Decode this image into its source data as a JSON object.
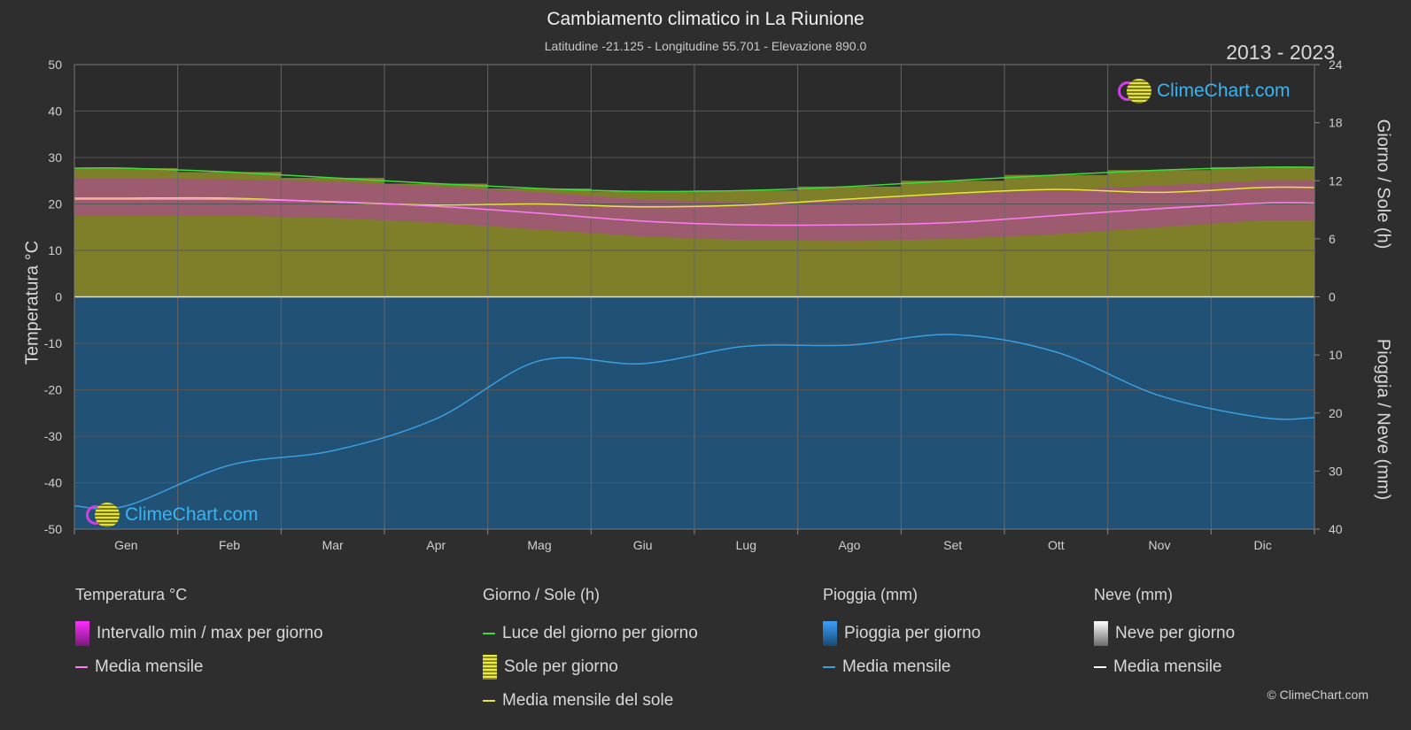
{
  "header": {
    "title": "Cambiamento climatico in La Riunione",
    "subtitle": "Latitudine -21.125 - Longitudine 55.701 - Elevazione 890.0",
    "years": "2013 - 2023"
  },
  "axes": {
    "left_title": "Temperatura °C",
    "right_top_title": "Giorno / Sole (h)",
    "right_bottom_title": "Pioggia / Neve (mm)"
  },
  "logo": {
    "brand": "ClimeChart.com"
  },
  "copyright": "© ClimeChart.com",
  "legend": {
    "temperature": {
      "heading": "Temperatura °C",
      "range_label": "Intervallo min / max per giorno",
      "mean_label": "Media mensile"
    },
    "sun": {
      "heading": "Giorno / Sole (h)",
      "daylight_label": "Luce del giorno per giorno",
      "sun_label": "Sole per giorno",
      "sun_mean_label": "Media mensile del sole"
    },
    "rain": {
      "heading": "Pioggia (mm)",
      "rain_label": "Pioggia per giorno",
      "mean_label": "Media mensile"
    },
    "snow": {
      "heading": "Neve (mm)",
      "snow_label": "Neve per giorno",
      "mean_label": "Media mensile"
    }
  },
  "colors": {
    "daylight": "#3ddc3d",
    "sun_band": "#8e8e2a",
    "sun_mean": "#e6e63a",
    "temp_band": "#c030c0",
    "temp_mean": "#ff7cf5",
    "rain_band": "#1f5f8f",
    "rain_mean": "#3a9ee0",
    "snow_mean": "#ffffff"
  },
  "chart_data": {
    "type": "line",
    "categories": [
      "Gen",
      "Feb",
      "Mar",
      "Apr",
      "Mag",
      "Giu",
      "Lug",
      "Ago",
      "Set",
      "Ott",
      "Nov",
      "Dic"
    ],
    "y_left": {
      "min": -50,
      "max": 50,
      "ticks": [
        50,
        40,
        30,
        20,
        10,
        0,
        -10,
        -20,
        -30,
        -40,
        -50
      ]
    },
    "y_right_top": {
      "min": 0,
      "max": 24,
      "ticks": [
        24,
        18,
        12,
        6,
        0
      ]
    },
    "y_right_bottom": {
      "min": 0,
      "max": 40,
      "ticks": [
        0,
        10,
        20,
        30,
        40
      ]
    },
    "series": [
      {
        "name": "Luce del giorno per giorno",
        "axis": "sun_h",
        "values": [
          13.3,
          12.9,
          12.3,
          11.7,
          11.2,
          10.9,
          11.0,
          11.4,
          12.0,
          12.6,
          13.1,
          13.4
        ]
      },
      {
        "name": "Media mensile del sole",
        "axis": "sun_h",
        "values": [
          10.2,
          10.2,
          9.8,
          9.5,
          9.6,
          9.3,
          9.5,
          10.1,
          10.7,
          11.1,
          10.8,
          11.3
        ]
      },
      {
        "name": "Temperatura media mensile",
        "axis": "temp_c",
        "values": [
          21.0,
          21.0,
          20.5,
          19.5,
          18.0,
          16.3,
          15.5,
          15.5,
          16.0,
          17.5,
          19.0,
          20.2
        ]
      },
      {
        "name": "Temperatura max giornaliera",
        "axis": "temp_c",
        "values": [
          25.5,
          25.3,
          24.8,
          23.8,
          22.5,
          21.0,
          20.3,
          20.8,
          22.0,
          23.0,
          24.0,
          25.0
        ]
      },
      {
        "name": "Temperatura min giornaliera",
        "axis": "temp_c",
        "values": [
          17.5,
          17.5,
          17.0,
          16.0,
          14.5,
          13.0,
          12.2,
          12.0,
          12.5,
          13.5,
          15.0,
          16.5
        ]
      },
      {
        "name": "Pioggia media mensile",
        "axis": "rain_mm",
        "values": [
          36.0,
          29.0,
          26.5,
          21.0,
          11.0,
          11.5,
          8.5,
          8.3,
          6.5,
          9.5,
          17.0,
          20.8
        ]
      }
    ],
    "rain_band_extent_mm": [
      40,
      40,
      40,
      40,
      40,
      40,
      40,
      40,
      40,
      40,
      40,
      40
    ]
  }
}
